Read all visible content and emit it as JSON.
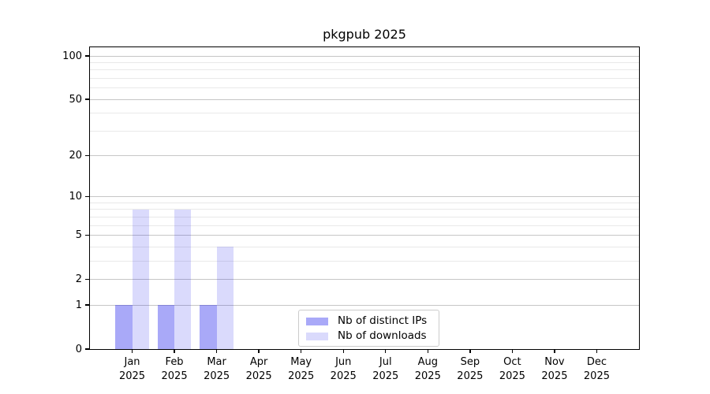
{
  "title": "pkgpub 2025",
  "chart_data": {
    "type": "bar",
    "title": "pkgpub 2025",
    "categories": [
      "Jan",
      "Feb",
      "Mar",
      "Apr",
      "May",
      "Jun",
      "Jul",
      "Aug",
      "Sep",
      "Oct",
      "Nov",
      "Dec"
    ],
    "category_year": "2025",
    "series": [
      {
        "name": "Nb of distinct IPs",
        "color": "rgba(9,9,235,0.35)",
        "values": [
          1,
          1,
          1,
          0,
          0,
          0,
          0,
          0,
          0,
          0,
          0,
          0
        ]
      },
      {
        "name": "Nb of downloads",
        "color": "rgba(9,9,235,0.15)",
        "values": [
          8,
          8,
          4,
          0,
          0,
          0,
          0,
          0,
          0,
          0,
          0,
          0
        ]
      }
    ],
    "yscale": "log10(value+1)",
    "yticks_major": [
      0,
      1,
      2,
      5,
      10,
      20,
      50,
      100
    ],
    "yticks_minor": [
      3,
      4,
      6,
      7,
      8,
      9,
      30,
      40,
      60,
      70,
      80,
      90
    ],
    "ylim": [
      0,
      113
    ],
    "ylim_top_transformed": 2.0643,
    "xlabel": "",
    "ylabel": "",
    "grid": true,
    "legend_position": "lower-center"
  },
  "colors": {
    "grid_major": "#c6c6c6",
    "grid_minor": "#e9e9e9",
    "spine": "#000000",
    "background": "#ffffff",
    "bar_distinct_ips_rendered": "#a9a9f8",
    "bar_downloads_rendered": "#d9d9fa"
  }
}
